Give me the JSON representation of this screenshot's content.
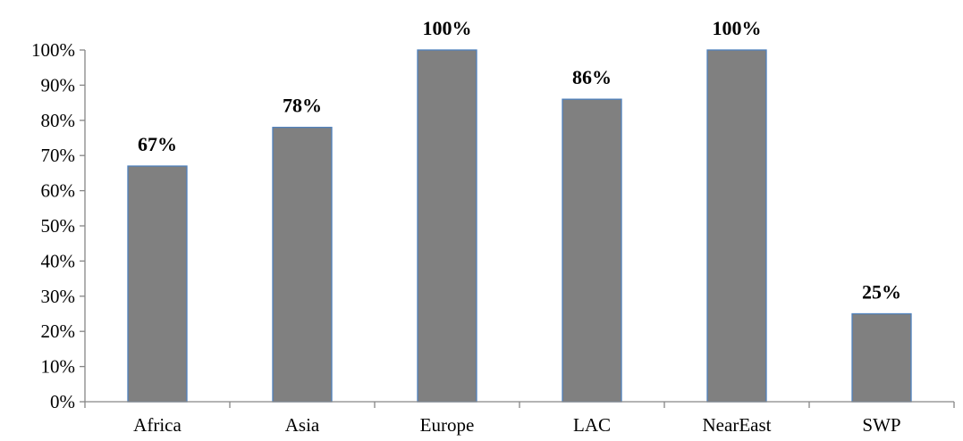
{
  "chart_data": {
    "type": "bar",
    "categories": [
      "Africa",
      "Asia",
      "Europe",
      "LAC",
      "NearEast",
      "SWP"
    ],
    "values": [
      67,
      78,
      100,
      86,
      100,
      25
    ],
    "data_labels": [
      "67%",
      "78%",
      "100%",
      "86%",
      "100%",
      "25%"
    ],
    "title": "",
    "xlabel": "",
    "ylabel": "",
    "ylim": [
      0,
      100
    ],
    "y_ticks": [
      0,
      10,
      20,
      30,
      40,
      50,
      60,
      70,
      80,
      90,
      100
    ],
    "y_tick_labels": [
      "0%",
      "10%",
      "20%",
      "30%",
      "40%",
      "50%",
      "60%",
      "70%",
      "80%",
      "90%",
      "100%"
    ],
    "grid": false,
    "legend": "none",
    "bar_color": "#808080",
    "bar_edge_color": "#4F81BD"
  }
}
